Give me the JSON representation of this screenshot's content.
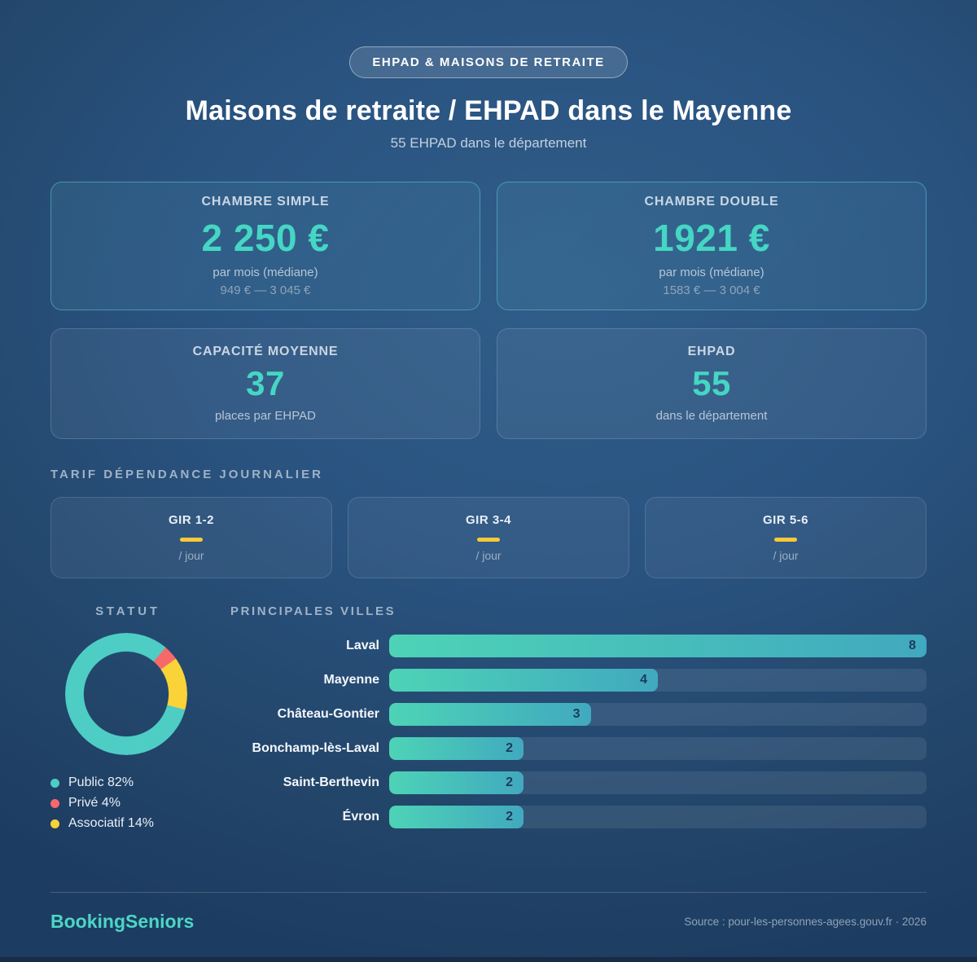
{
  "badge": "EHPAD & MAISONS DE RETRAITE",
  "title": "Maisons de retraite / EHPAD dans le Mayenne",
  "subtitle": "55 EHPAD dans le département",
  "accent_color": "#45d6c4",
  "stat_cards": [
    {
      "label": "CHAMBRE SIMPLE",
      "value": "2 250 €",
      "sub": "par mois (médiane)",
      "range": "949 € — 3 045 €"
    },
    {
      "label": "CHAMBRE DOUBLE",
      "value": "1921 €",
      "sub": "par mois (médiane)",
      "range": "1583 € — 3 004 €"
    },
    {
      "label": "CAPACITÉ MOYENNE",
      "value": "37",
      "sub": "places par EHPAD"
    },
    {
      "label": "EHPAD",
      "value": "55",
      "sub": "dans le département"
    }
  ],
  "tarif": {
    "heading": "TARIF DÉPENDANCE JOURNALIER",
    "cards": [
      {
        "label": "GIR 1-2",
        "per": "/ jour"
      },
      {
        "label": "GIR 3-4",
        "per": "/ jour"
      },
      {
        "label": "GIR 5-6",
        "per": "/ jour"
      }
    ],
    "dash_color": "#f8c838"
  },
  "statut": {
    "heading": "STATUT",
    "donut_start_deg": 40.2,
    "legend": [
      {
        "text": "Public 82%",
        "label": "Public",
        "pct": 82,
        "color": "#4ecdc4"
      },
      {
        "text": "Privé 4%",
        "label": "Privé",
        "pct": 4,
        "color": "#f6696b"
      },
      {
        "text": "Associatif 14%",
        "label": "Associatif",
        "pct": 14,
        "color": "#f9d338"
      }
    ]
  },
  "villes": {
    "heading": "PRINCIPALES VILLES",
    "max": 8,
    "rows": [
      {
        "label": "Laval",
        "value": 8
      },
      {
        "label": "Mayenne",
        "value": 4
      },
      {
        "label": "Château-Gontier",
        "value": 3
      },
      {
        "label": "Bonchamp-lès-Laval",
        "value": 2
      },
      {
        "label": "Saint-Berthevin",
        "value": 2
      },
      {
        "label": "Évron",
        "value": 2
      }
    ]
  },
  "footer": {
    "brand": "BookingSeniors",
    "source": "Source : pour-les-personnes-agees.gouv.fr · 2026"
  },
  "chart_data": [
    {
      "type": "pie",
      "style": "donut",
      "title": "STATUT",
      "labels": [
        "Public",
        "Privé",
        "Associatif"
      ],
      "values": [
        82,
        4,
        14
      ],
      "unit": "%",
      "colors": [
        "#4ecdc4",
        "#f6696b",
        "#f9d338"
      ],
      "legend_position": "bottom-left"
    },
    {
      "type": "bar",
      "orientation": "horizontal",
      "title": "PRINCIPALES VILLES",
      "categories": [
        "Laval",
        "Mayenne",
        "Château-Gontier",
        "Bonchamp-lès-Laval",
        "Saint-Berthevin",
        "Évron"
      ],
      "values": [
        8,
        4,
        3,
        2,
        2,
        2
      ],
      "xlim": [
        0,
        8
      ],
      "grid": false,
      "bar_color_gradient": [
        "#4dd3b6",
        "#41a9bf"
      ],
      "value_labels": "inside-end"
    }
  ]
}
